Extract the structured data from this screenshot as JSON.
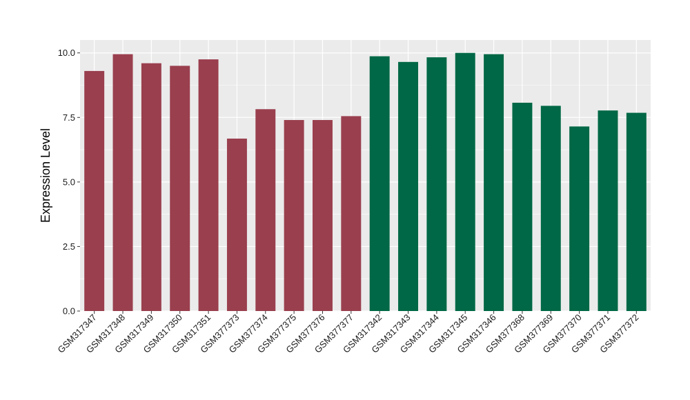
{
  "chart_data": {
    "type": "bar",
    "title": "",
    "xlabel": "",
    "ylabel": "Expression Level",
    "ylim": [
      0,
      10.5
    ],
    "yticks": [
      0.0,
      2.5,
      5.0,
      7.5,
      10.0
    ],
    "ytick_labels": [
      "0.0",
      "2.5",
      "5.0",
      "7.5",
      "10.0"
    ],
    "grid": true,
    "legend": "none",
    "categories": [
      "GSM317347",
      "GSM317348",
      "GSM317349",
      "GSM317350",
      "GSM317351",
      "GSM377373",
      "GSM377374",
      "GSM377375",
      "GSM377376",
      "GSM377377",
      "GSM317342",
      "GSM317343",
      "GSM317344",
      "GSM317345",
      "GSM317346",
      "GSM377368",
      "GSM377369",
      "GSM377370",
      "GSM377371",
      "GSM377372"
    ],
    "values": [
      9.3,
      9.95,
      9.6,
      9.5,
      9.75,
      6.68,
      7.82,
      7.4,
      7.4,
      7.55,
      9.87,
      9.65,
      9.83,
      10.0,
      9.95,
      8.07,
      7.95,
      7.15,
      7.77,
      7.68
    ],
    "groups": [
      0,
      0,
      0,
      0,
      0,
      0,
      0,
      0,
      0,
      0,
      1,
      1,
      1,
      1,
      1,
      1,
      1,
      1,
      1,
      1
    ],
    "colors": [
      "#9a3f4e",
      "#006846"
    ],
    "panel_background": "#ebebeb",
    "grid_color": "#ffffff"
  }
}
